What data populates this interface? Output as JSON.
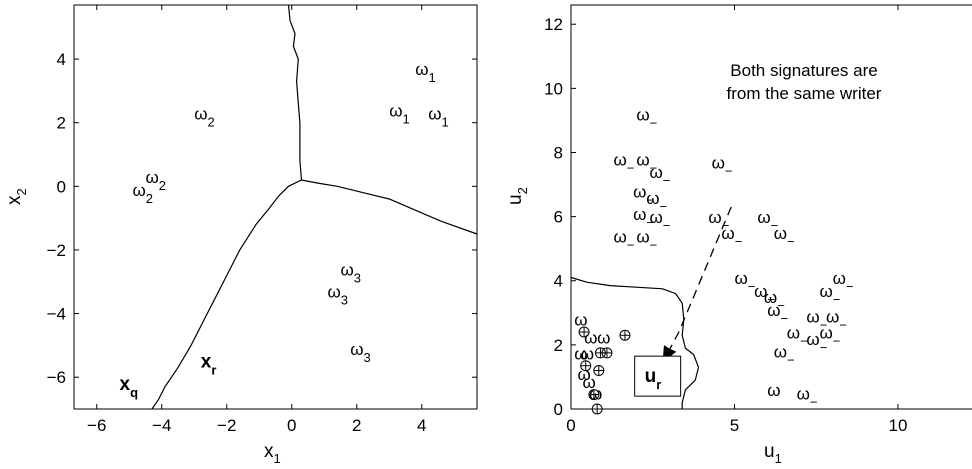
{
  "chart_data": [
    {
      "type": "scatter",
      "xlabel": {
        "base": "x",
        "sub": "1"
      },
      "ylabel": {
        "base": "x",
        "sub": "2"
      },
      "xlim": [
        -6.7,
        5.7
      ],
      "ylim": [
        -7,
        5.7
      ],
      "xticks": [
        -6,
        -4,
        -2,
        0,
        2,
        4
      ],
      "yticks": [
        -6,
        -4,
        -2,
        0,
        2,
        4
      ],
      "x_tick_labels": [
        "−6",
        "−4",
        "−2",
        "0",
        "2",
        "4"
      ],
      "y_tick_labels": [
        "−6",
        "−4",
        "−2",
        "0",
        "2",
        "4"
      ],
      "class_markers": [
        {
          "text": "ω",
          "sub": "1",
          "x": 3.8,
          "y": 3.5
        },
        {
          "text": "ω",
          "sub": "1",
          "x": 3.0,
          "y": 2.2
        },
        {
          "text": "ω",
          "sub": "1",
          "x": 4.2,
          "y": 2.1
        },
        {
          "text": "ω",
          "sub": "2",
          "x": -3.0,
          "y": 2.1
        },
        {
          "text": "ω",
          "sub": "2",
          "x": -4.5,
          "y": 0.1
        },
        {
          "text": "ω",
          "sub": "2",
          "x": -4.9,
          "y": -0.3
        },
        {
          "text": "ω",
          "sub": "3",
          "x": 1.5,
          "y": -2.8
        },
        {
          "text": "ω",
          "sub": "3",
          "x": 1.1,
          "y": -3.5
        },
        {
          "text": "ω",
          "sub": "3",
          "x": 1.8,
          "y": -5.3
        }
      ],
      "query_points": [
        {
          "text": "x",
          "sub": "q",
          "x": -5.3,
          "y": -6.4
        },
        {
          "text": "x",
          "sub": "r",
          "x": -2.8,
          "y": -5.7
        }
      ],
      "decision_boundaries": [
        [
          [
            -0.1,
            5.7
          ],
          [
            -0.05,
            5.2
          ],
          [
            0.1,
            4.8
          ],
          [
            0.05,
            4.4
          ],
          [
            0.2,
            4.0
          ],
          [
            0.15,
            3.3
          ],
          [
            0.2,
            2.6
          ],
          [
            0.25,
            2.0
          ],
          [
            0.25,
            1.3
          ],
          [
            0.25,
            0.8
          ],
          [
            0.3,
            0.2
          ]
        ],
        [
          [
            0.3,
            0.2
          ],
          [
            0.8,
            0.1
          ],
          [
            1.4,
            0.0
          ],
          [
            2.2,
            -0.2
          ],
          [
            3.0,
            -0.4
          ],
          [
            3.8,
            -0.75
          ],
          [
            4.6,
            -1.1
          ],
          [
            5.7,
            -1.5
          ]
        ],
        [
          [
            0.3,
            0.2
          ],
          [
            -0.1,
            0.0
          ],
          [
            -0.4,
            -0.3
          ],
          [
            -0.7,
            -0.7
          ],
          [
            -1.1,
            -1.2
          ],
          [
            -1.6,
            -2.0
          ],
          [
            -2.0,
            -2.8
          ],
          [
            -2.4,
            -3.6
          ],
          [
            -2.7,
            -4.2
          ],
          [
            -3.1,
            -5.0
          ],
          [
            -3.5,
            -5.7
          ],
          [
            -3.9,
            -6.3
          ],
          [
            -4.1,
            -6.7
          ],
          [
            -4.3,
            -7.0
          ]
        ]
      ]
    },
    {
      "type": "scatter",
      "xlabel": {
        "base": "u",
        "sub": "1"
      },
      "ylabel": {
        "base": "u",
        "sub": "2"
      },
      "xlim": [
        0,
        12.6
      ],
      "ylim": [
        0,
        12.6
      ],
      "xticks": [
        0,
        5,
        10
      ],
      "yticks": [
        0,
        2,
        4,
        6,
        8,
        10,
        12
      ],
      "x_tick_labels": [
        "0",
        "5",
        "10"
      ],
      "y_tick_labels": [
        "0",
        "2",
        "4",
        "6",
        "8",
        "10",
        "12"
      ],
      "annotation": {
        "line1": "Both signatures are",
        "line2": "from the same writer"
      },
      "annotation_arrow": [
        [
          4.9,
          6.3
        ],
        [
          3.3,
          2.4
        ],
        [
          2.8,
          1.45
        ]
      ],
      "reference_point": {
        "text": "u",
        "sub": "r",
        "x": 2.65,
        "y": 0.9
      },
      "negative_label": {
        "text": "ω",
        "sub": "−"
      },
      "positive_label": {
        "text": "ω"
      },
      "negative_points": [
        [
          2.0,
          9.0
        ],
        [
          1.3,
          7.6
        ],
        [
          2.0,
          7.6
        ],
        [
          2.4,
          7.2
        ],
        [
          1.9,
          6.6
        ],
        [
          2.3,
          6.4
        ],
        [
          1.9,
          5.9
        ],
        [
          2.4,
          5.8
        ],
        [
          1.3,
          5.2
        ],
        [
          2.0,
          5.2
        ],
        [
          4.3,
          7.5
        ],
        [
          4.2,
          5.8
        ],
        [
          4.6,
          5.3
        ],
        [
          5.7,
          5.8
        ],
        [
          6.2,
          5.3
        ],
        [
          5.0,
          3.9
        ],
        [
          5.6,
          3.5
        ],
        [
          5.9,
          3.3
        ],
        [
          6.0,
          2.9
        ],
        [
          6.6,
          2.2
        ],
        [
          6.2,
          1.6
        ],
        [
          7.2,
          2.7
        ],
        [
          7.8,
          2.7
        ],
        [
          7.6,
          2.2
        ],
        [
          7.2,
          2.0
        ],
        [
          7.6,
          3.5
        ],
        [
          8.0,
          3.9
        ],
        [
          6.9,
          0.3
        ]
      ],
      "positive_points": [
        [
          0.1,
          2.6
        ],
        [
          0.4,
          2.05
        ],
        [
          0.8,
          2.05
        ],
        [
          0.1,
          1.55
        ],
        [
          0.3,
          1.55
        ],
        [
          0.2,
          0.9
        ],
        [
          0.35,
          0.65
        ],
        [
          0.55,
          0.3
        ],
        [
          6.0,
          0.4
        ]
      ],
      "plus_points": [
        [
          0.4,
          2.4
        ],
        [
          0.9,
          1.75
        ],
        [
          1.1,
          1.75
        ],
        [
          0.85,
          1.2
        ],
        [
          0.45,
          1.35
        ],
        [
          0.7,
          0.45
        ],
        [
          0.8,
          0.0
        ],
        [
          1.65,
          2.3
        ]
      ],
      "decision_boundary": [
        [
          0,
          4.1
        ],
        [
          0.5,
          3.95
        ],
        [
          1.2,
          3.85
        ],
        [
          2.0,
          3.8
        ],
        [
          2.8,
          3.75
        ],
        [
          3.2,
          3.6
        ],
        [
          3.4,
          3.3
        ],
        [
          3.45,
          2.8
        ],
        [
          3.4,
          2.3
        ],
        [
          3.5,
          1.9
        ],
        [
          3.75,
          1.7
        ],
        [
          3.9,
          1.3
        ],
        [
          3.8,
          0.9
        ],
        [
          3.5,
          0.6
        ],
        [
          3.4,
          0.2
        ],
        [
          3.4,
          0.0
        ]
      ]
    }
  ]
}
